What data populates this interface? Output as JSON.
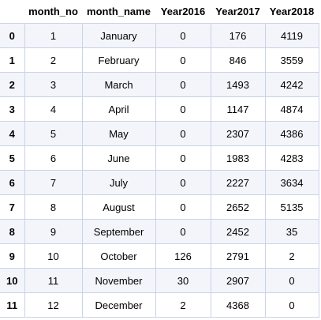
{
  "table": {
    "index_header": "",
    "columns": [
      "month_no",
      "month_name",
      "Year2016",
      "Year2017",
      "Year2018"
    ],
    "rows": [
      {
        "index": "0",
        "cells": [
          "1",
          "January",
          "0",
          "176",
          "4119"
        ]
      },
      {
        "index": "1",
        "cells": [
          "2",
          "February",
          "0",
          "846",
          "3559"
        ]
      },
      {
        "index": "2",
        "cells": [
          "3",
          "March",
          "0",
          "1493",
          "4242"
        ]
      },
      {
        "index": "3",
        "cells": [
          "4",
          "April",
          "0",
          "1147",
          "4874"
        ]
      },
      {
        "index": "4",
        "cells": [
          "5",
          "May",
          "0",
          "2307",
          "4386"
        ]
      },
      {
        "index": "5",
        "cells": [
          "6",
          "June",
          "0",
          "1983",
          "4283"
        ]
      },
      {
        "index": "6",
        "cells": [
          "7",
          "July",
          "0",
          "2227",
          "3634"
        ]
      },
      {
        "index": "7",
        "cells": [
          "8",
          "August",
          "0",
          "2652",
          "5135"
        ]
      },
      {
        "index": "8",
        "cells": [
          "9",
          "September",
          "0",
          "2452",
          "35"
        ]
      },
      {
        "index": "9",
        "cells": [
          "10",
          "October",
          "126",
          "2791",
          "2"
        ]
      },
      {
        "index": "10",
        "cells": [
          "11",
          "November",
          "30",
          "2907",
          "0"
        ]
      },
      {
        "index": "11",
        "cells": [
          "12",
          "December",
          "2",
          "4368",
          "0"
        ]
      }
    ]
  },
  "colors": {
    "row_stripe": "#f3f5fb",
    "grid_line": "#c9d3e6",
    "text": "#000000"
  }
}
